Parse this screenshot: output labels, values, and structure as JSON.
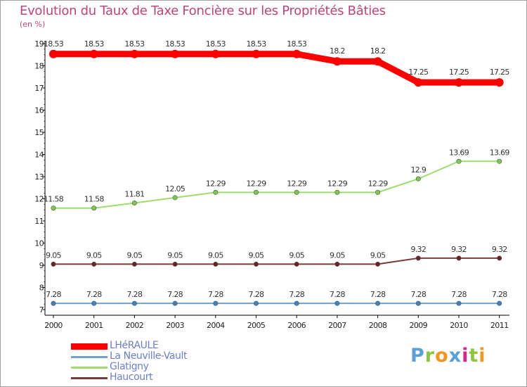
{
  "title": "Evolution du Taux de Taxe Foncière sur les Propriétés Bâties",
  "subtitle": "(en %)",
  "logo": {
    "text": "Proxiti",
    "colors": [
      "#5aa0d8",
      "#8cc63f",
      "#f7941d",
      "#5aa0d8",
      "#e0218a",
      "#8cc63f",
      "#f7941d"
    ]
  },
  "chart_data": {
    "type": "line",
    "title": "Evolution du Taux de Taxe Foncière sur les Propriétés Bâties",
    "ylabel": "(en %)",
    "x": [
      "2000",
      "2001",
      "2002",
      "2003",
      "2004",
      "2005",
      "2006",
      "2007",
      "2008",
      "2009",
      "2010",
      "2011"
    ],
    "ylim": [
      7,
      19
    ],
    "yticks": [
      7,
      8,
      9,
      10,
      11,
      12,
      13,
      14,
      15,
      16,
      17,
      18,
      19
    ],
    "grid": false,
    "legend_position": "bottom-left",
    "series": [
      {
        "name": "LHéRAULE",
        "color": "#ff0000",
        "point_color": "#ff0000",
        "values": [
          18.53,
          18.53,
          18.53,
          18.53,
          18.53,
          18.53,
          18.53,
          18.2,
          18.2,
          17.25,
          17.25,
          17.25
        ],
        "labels": [
          "18.53",
          "18.53",
          "18.53",
          "18.53",
          "18.53",
          "18.53",
          "18.53",
          "18.2",
          "18.2",
          "17.25",
          "17.25",
          "17.25"
        ]
      },
      {
        "name": "La Neuville-Vault",
        "color": "#6fa3c8",
        "point_color": "#3e82c2",
        "values": [
          7.28,
          7.28,
          7.28,
          7.28,
          7.28,
          7.28,
          7.28,
          7.28,
          7.28,
          7.28,
          7.28,
          7.28
        ],
        "labels": [
          "7.28",
          "7.28",
          "7.28",
          "7.28",
          "7.28",
          "7.28",
          "7.28",
          "7.28",
          "7.28",
          "7.28",
          "7.28",
          "7.28"
        ]
      },
      {
        "name": "Glatigny",
        "color": "#9dde6c",
        "point_color": "#7ec84a",
        "values": [
          11.58,
          11.58,
          11.81,
          12.05,
          12.29,
          12.29,
          12.29,
          12.29,
          12.29,
          12.9,
          13.69,
          13.69
        ],
        "labels": [
          "11.58",
          "11.58",
          "11.81",
          "12.05",
          "12.29",
          "12.29",
          "12.29",
          "12.29",
          "12.29",
          "12.9",
          "13.69",
          "13.69"
        ]
      },
      {
        "name": "Haucourt",
        "color": "#7a3b3b",
        "point_color": "#6b2222",
        "values": [
          9.05,
          9.05,
          9.05,
          9.05,
          9.05,
          9.05,
          9.05,
          9.05,
          9.05,
          9.32,
          9.32,
          9.32
        ],
        "labels": [
          "9.05",
          "9.05",
          "9.05",
          "9.05",
          "9.05",
          "9.05",
          "9.05",
          "9.05",
          "9.05",
          "9.32",
          "9.32",
          "9.32"
        ]
      }
    ]
  }
}
